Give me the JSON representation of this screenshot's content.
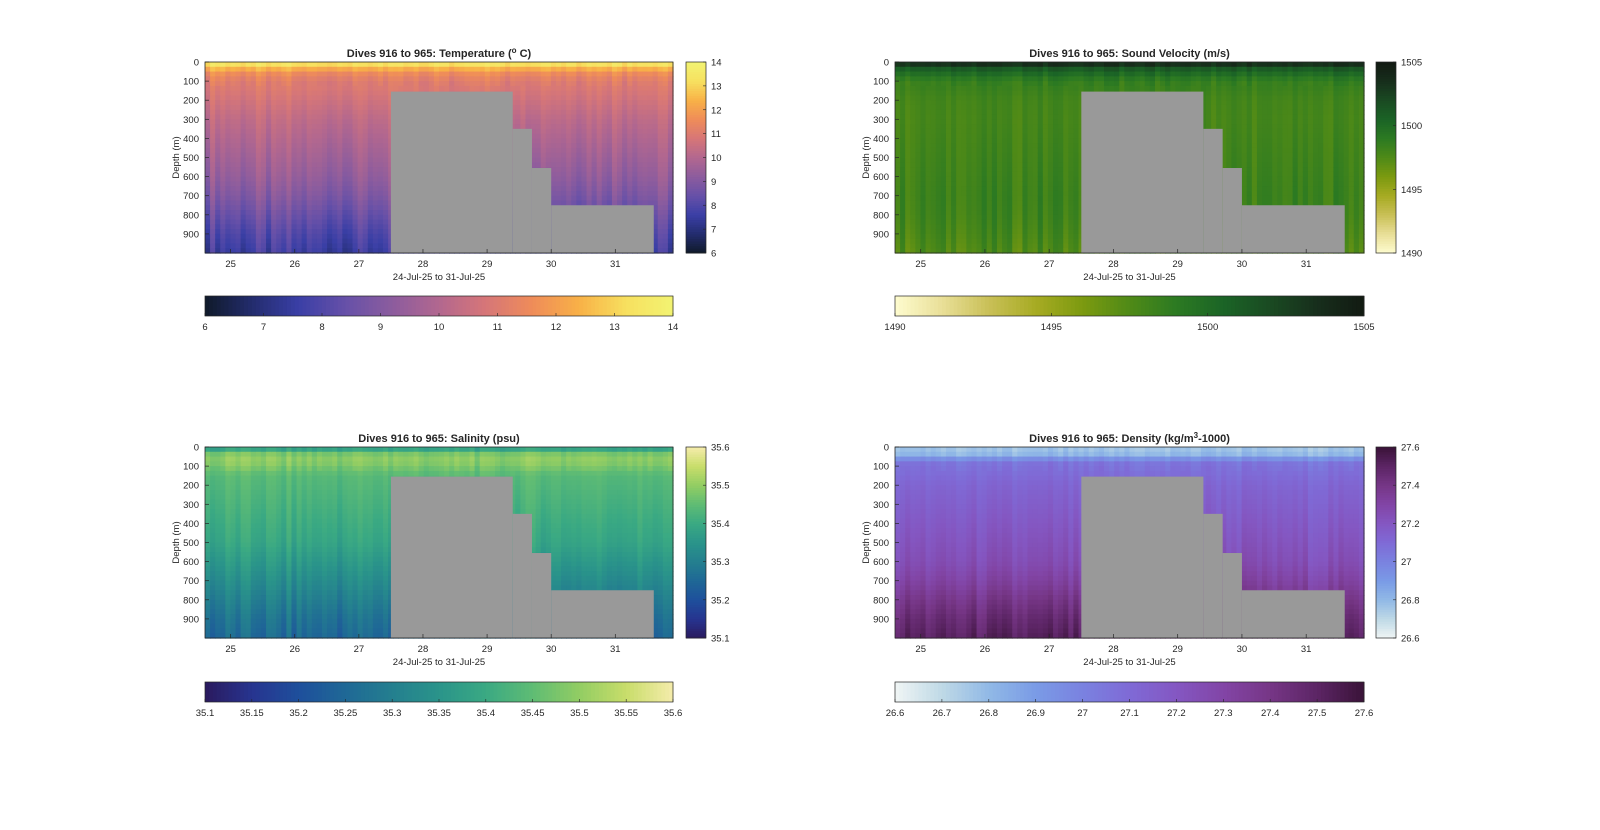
{
  "figure": {
    "background": "#ffffff",
    "no_data_color": "#999999"
  },
  "chart_data": [
    {
      "type": "heatmap",
      "key": "temp",
      "title": "Dives 916 to 965: Temperature (° C)",
      "title_parts": [
        "Dives 916 to 965: Temperature (",
        "o",
        " C)"
      ],
      "xlabel": "24-Jul-25 to 31-Jul-25",
      "ylabel": "Depth (m)",
      "x_ticks": [
        "25",
        "26",
        "27",
        "28",
        "29",
        "30",
        "31"
      ],
      "x_range": [
        24.6,
        31.9
      ],
      "y_ticks": [
        "0",
        "100",
        "200",
        "300",
        "400",
        "500",
        "600",
        "700",
        "800",
        "900"
      ],
      "y_range": [
        0,
        1000
      ],
      "y_reversed": true,
      "clim": [
        6,
        14
      ],
      "colorbar_ticks": [
        "6",
        "7",
        "8",
        "9",
        "10",
        "11",
        "12",
        "13",
        "14"
      ],
      "horizontal_colorbar_ticks": [
        "6",
        "7",
        "8",
        "9",
        "10",
        "11",
        "12",
        "13",
        "14"
      ],
      "colormap": [
        "#0f1a29",
        "#232c6d",
        "#3a3fa6",
        "#6650a8",
        "#8c5c9e",
        "#b2678f",
        "#d67678",
        "#ef8c59",
        "#f8b147",
        "#f7e05f",
        "#f2f372"
      ],
      "profile": [
        {
          "depth": 0,
          "value": 13.8
        },
        {
          "depth": 30,
          "value": 12.6
        },
        {
          "depth": 60,
          "value": 11.6
        },
        {
          "depth": 100,
          "value": 11.1
        },
        {
          "depth": 200,
          "value": 10.7
        },
        {
          "depth": 300,
          "value": 10.3
        },
        {
          "depth": 400,
          "value": 10.0
        },
        {
          "depth": 500,
          "value": 9.7
        },
        {
          "depth": 600,
          "value": 9.4
        },
        {
          "depth": 700,
          "value": 9.0
        },
        {
          "depth": 800,
          "value": 8.5
        },
        {
          "depth": 900,
          "value": 8.0
        },
        {
          "depth": 1000,
          "value": 7.6
        }
      ],
      "dive_span": "916 to 965"
    },
    {
      "type": "heatmap",
      "key": "sv",
      "title": "Dives 916 to 965: Sound Velocity (m/s)",
      "title_parts": [
        "Dives 916 to 965: Sound Velocity (m/s)"
      ],
      "xlabel": "24-Jul-25 to 31-Jul-25",
      "ylabel": "Depth (m)",
      "x_ticks": [
        "25",
        "26",
        "27",
        "28",
        "29",
        "30",
        "31"
      ],
      "x_range": [
        24.6,
        31.9
      ],
      "y_ticks": [
        "0",
        "100",
        "200",
        "300",
        "400",
        "500",
        "600",
        "700",
        "800",
        "900"
      ],
      "y_range": [
        0,
        1000
      ],
      "y_reversed": true,
      "clim": [
        1490,
        1505
      ],
      "colorbar_ticks": [
        "1490",
        "1495",
        "1500",
        "1505"
      ],
      "horizontal_colorbar_ticks": [
        "1490",
        "1495",
        "1500",
        "1505"
      ],
      "colormap": [
        "#fefccf",
        "#e9df98",
        "#c9c057",
        "#a7ab23",
        "#7c9a10",
        "#4f8a17",
        "#2c7a22",
        "#1b6426",
        "#1a4a22",
        "#172e1c",
        "#121a12"
      ],
      "profile": [
        {
          "depth": 0,
          "value": 1504.5
        },
        {
          "depth": 40,
          "value": 1500.8
        },
        {
          "depth": 100,
          "value": 1498.6
        },
        {
          "depth": 200,
          "value": 1498.0
        },
        {
          "depth": 300,
          "value": 1497.9
        },
        {
          "depth": 400,
          "value": 1498.0
        },
        {
          "depth": 500,
          "value": 1498.1
        },
        {
          "depth": 600,
          "value": 1498.2
        },
        {
          "depth": 700,
          "value": 1498.3
        },
        {
          "depth": 800,
          "value": 1498.2
        },
        {
          "depth": 900,
          "value": 1497.9
        },
        {
          "depth": 1000,
          "value": 1497.5
        }
      ],
      "dive_span": "916 to 965"
    },
    {
      "type": "heatmap",
      "key": "sal",
      "title": "Dives 916 to 965: Salinity (psu)",
      "title_parts": [
        "Dives 916 to 965: Salinity (psu)"
      ],
      "xlabel": "24-Jul-25 to 31-Jul-25",
      "ylabel": "Depth (m)",
      "x_ticks": [
        "25",
        "26",
        "27",
        "28",
        "29",
        "30",
        "31"
      ],
      "x_range": [
        24.6,
        31.9
      ],
      "y_ticks": [
        "0",
        "100",
        "200",
        "300",
        "400",
        "500",
        "600",
        "700",
        "800",
        "900"
      ],
      "y_range": [
        0,
        1000
      ],
      "y_reversed": true,
      "clim": [
        35.1,
        35.6
      ],
      "colorbar_ticks": [
        "35.1",
        "35.2",
        "35.3",
        "35.4",
        "35.5",
        "35.6"
      ],
      "horizontal_colorbar_ticks": [
        "35.1",
        "35.15",
        "35.2",
        "35.25",
        "35.3",
        "35.35",
        "35.4",
        "35.45",
        "35.5",
        "35.55",
        "35.6"
      ],
      "colormap": [
        "#2a1a5e",
        "#27348f",
        "#1e4f9c",
        "#1f6896",
        "#247f8f",
        "#2a948a",
        "#3aa983",
        "#5fbc74",
        "#92cd63",
        "#c8dd6a",
        "#f5ecab"
      ],
      "profile": [
        {
          "depth": 0,
          "value": 35.33
        },
        {
          "depth": 30,
          "value": 35.47
        },
        {
          "depth": 70,
          "value": 35.5
        },
        {
          "depth": 150,
          "value": 35.44
        },
        {
          "depth": 300,
          "value": 35.42
        },
        {
          "depth": 500,
          "value": 35.39
        },
        {
          "depth": 600,
          "value": 35.36
        },
        {
          "depth": 700,
          "value": 35.33
        },
        {
          "depth": 800,
          "value": 35.3
        },
        {
          "depth": 900,
          "value": 35.27
        },
        {
          "depth": 1000,
          "value": 35.25
        }
      ],
      "dive_span": "916 to 965"
    },
    {
      "type": "heatmap",
      "key": "dens",
      "title": "Dives 916 to 965: Density (kg/m³-1000)",
      "title_parts": [
        "Dives 916 to 965: Density (kg/m",
        "3",
        "-1000)"
      ],
      "xlabel": "24-Jul-25 to 31-Jul-25",
      "ylabel": "Depth (m)",
      "x_ticks": [
        "25",
        "26",
        "27",
        "28",
        "29",
        "30",
        "31"
      ],
      "x_range": [
        24.6,
        31.9
      ],
      "y_ticks": [
        "0",
        "100",
        "200",
        "300",
        "400",
        "500",
        "600",
        "700",
        "800",
        "900"
      ],
      "y_range": [
        0,
        1000
      ],
      "y_reversed": true,
      "clim": [
        26.6,
        27.6
      ],
      "colorbar_ticks": [
        "26.6",
        "26.8",
        "27",
        "27.2",
        "27.4",
        "27.6"
      ],
      "horizontal_colorbar_ticks": [
        "26.6",
        "26.7",
        "26.8",
        "26.9",
        "27",
        "27.1",
        "27.2",
        "27.3",
        "27.4",
        "27.5",
        "27.6"
      ],
      "colormap": [
        "#f0f5f5",
        "#bfd9e6",
        "#91b9e6",
        "#7a9be6",
        "#7a82e0",
        "#7f6ad6",
        "#8457c2",
        "#8245a6",
        "#763686",
        "#5c2565",
        "#3a1338"
      ],
      "profile": [
        {
          "depth": 0,
          "value": 26.75
        },
        {
          "depth": 40,
          "value": 26.8
        },
        {
          "depth": 80,
          "value": 27.05
        },
        {
          "depth": 200,
          "value": 27.12
        },
        {
          "depth": 400,
          "value": 27.18
        },
        {
          "depth": 600,
          "value": 27.24
        },
        {
          "depth": 700,
          "value": 27.3
        },
        {
          "depth": 800,
          "value": 27.38
        },
        {
          "depth": 900,
          "value": 27.45
        },
        {
          "depth": 1000,
          "value": 27.5
        }
      ],
      "dive_span": "916 to 965"
    }
  ],
  "shared_coverage": {
    "no_data_regions": [
      {
        "x_from": 27.5,
        "x_to": 29.4,
        "depth_from": 155,
        "depth_to": 1000
      },
      {
        "x_from": 29.4,
        "x_to": 29.7,
        "depth_from": 350,
        "depth_to": 1000
      },
      {
        "x_from": 29.7,
        "x_to": 30.0,
        "depth_from": 555,
        "depth_to": 1000
      },
      {
        "x_from": 30.0,
        "x_to": 31.6,
        "depth_from": 750,
        "depth_to": 1000
      }
    ]
  }
}
